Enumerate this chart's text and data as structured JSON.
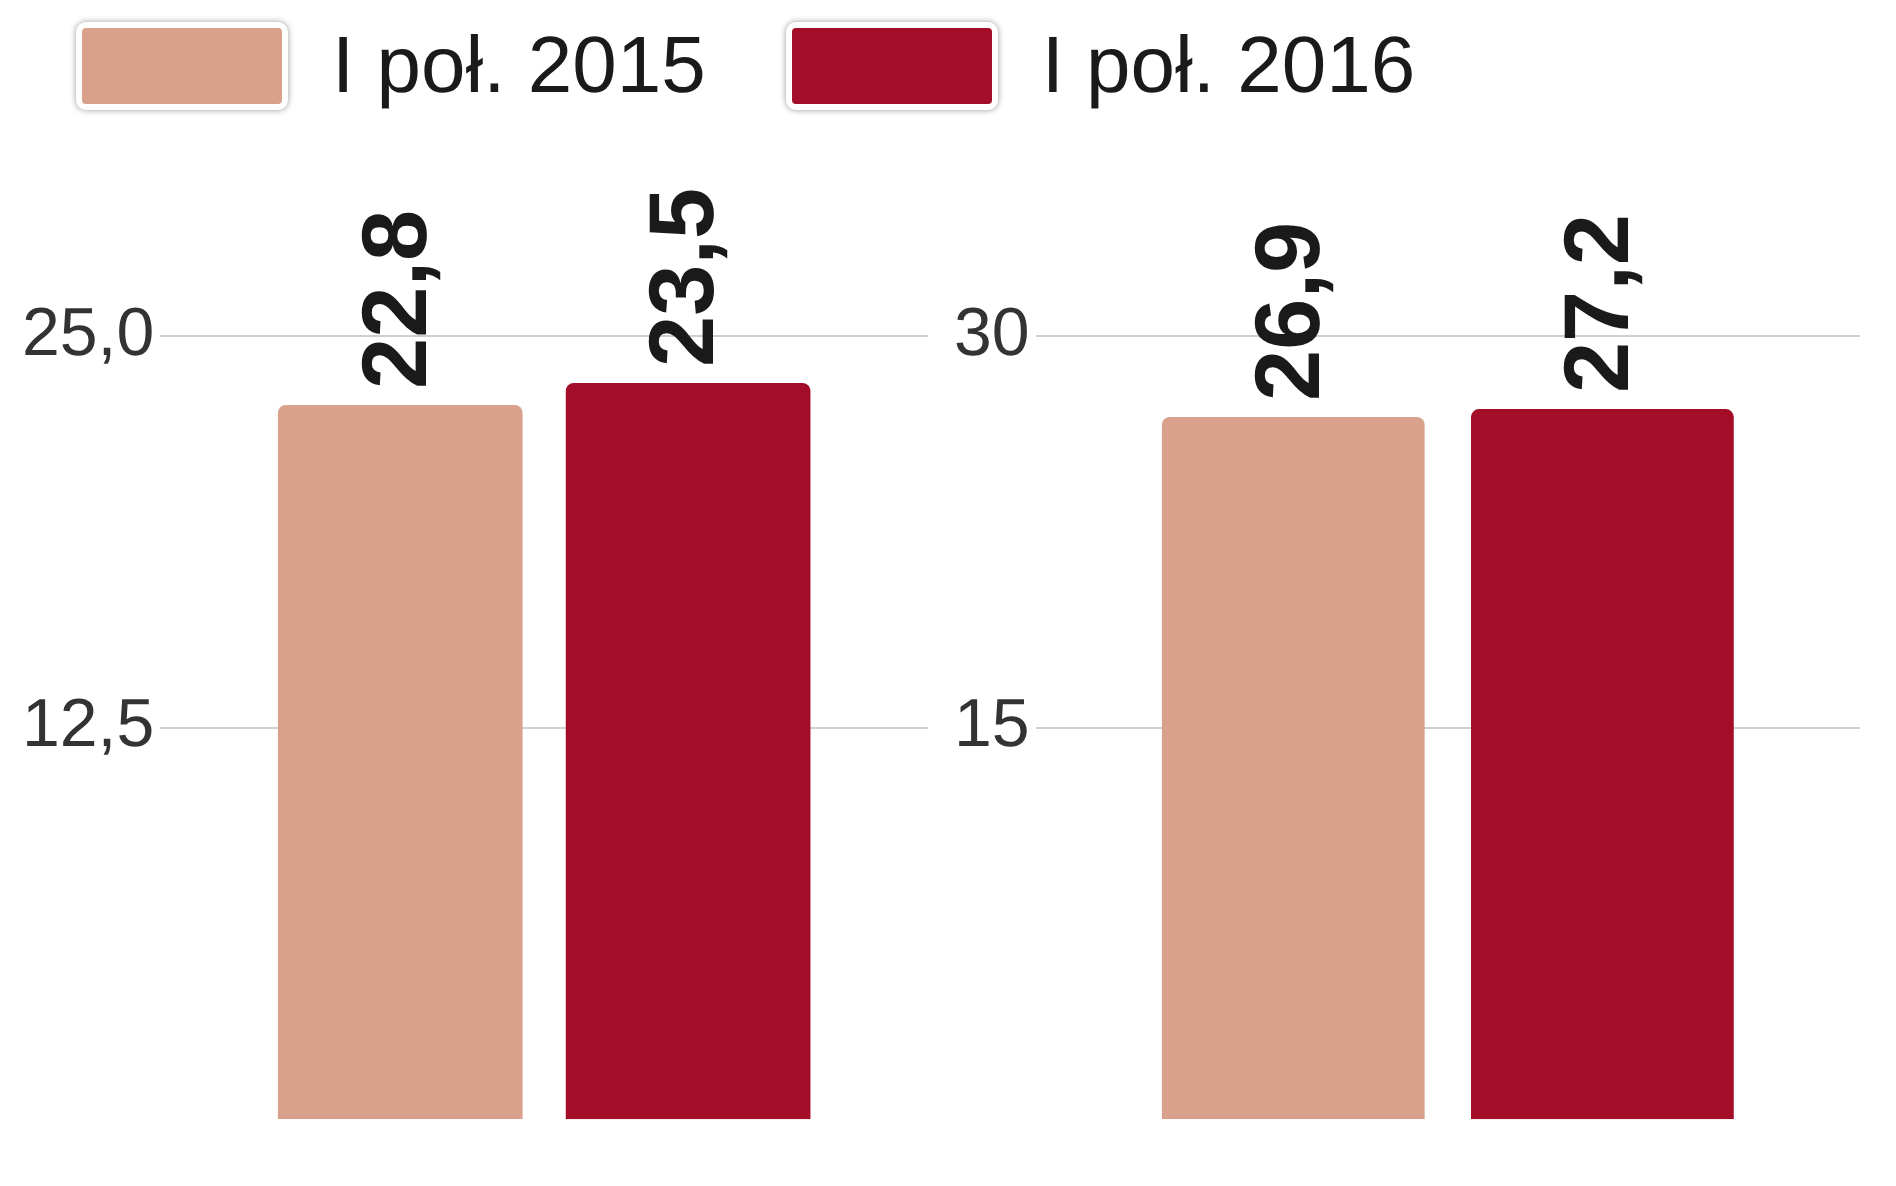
{
  "chart_data": [
    {
      "type": "bar",
      "categories": [
        null
      ],
      "series": [
        {
          "name": "I poł. 2015",
          "color": "#d9a18b",
          "values": [
            22.8
          ],
          "value_labels": [
            "22,8"
          ]
        },
        {
          "name": "I poł. 2016",
          "color": "#a30d28",
          "values": [
            23.5
          ],
          "value_labels": [
            "23,5"
          ]
        }
      ],
      "ylim": [
        0,
        25
      ],
      "yticks": [
        {
          "value": 12.5,
          "label": "12,5"
        },
        {
          "value": 25,
          "label": "25,0"
        }
      ],
      "grid": "y",
      "legend": "top"
    },
    {
      "type": "bar",
      "categories": [
        null
      ],
      "series": [
        {
          "color": "#d9a18b",
          "values": [
            26.9
          ],
          "value_labels": [
            "26,9"
          ]
        },
        {
          "color": "#a30d28",
          "values": [
            27.2
          ],
          "value_labels": [
            "27,2"
          ]
        }
      ],
      "ylim": [
        0,
        30
      ],
      "yticks": [
        15,
        30
      ],
      "grid": "y"
    }
  ]
}
